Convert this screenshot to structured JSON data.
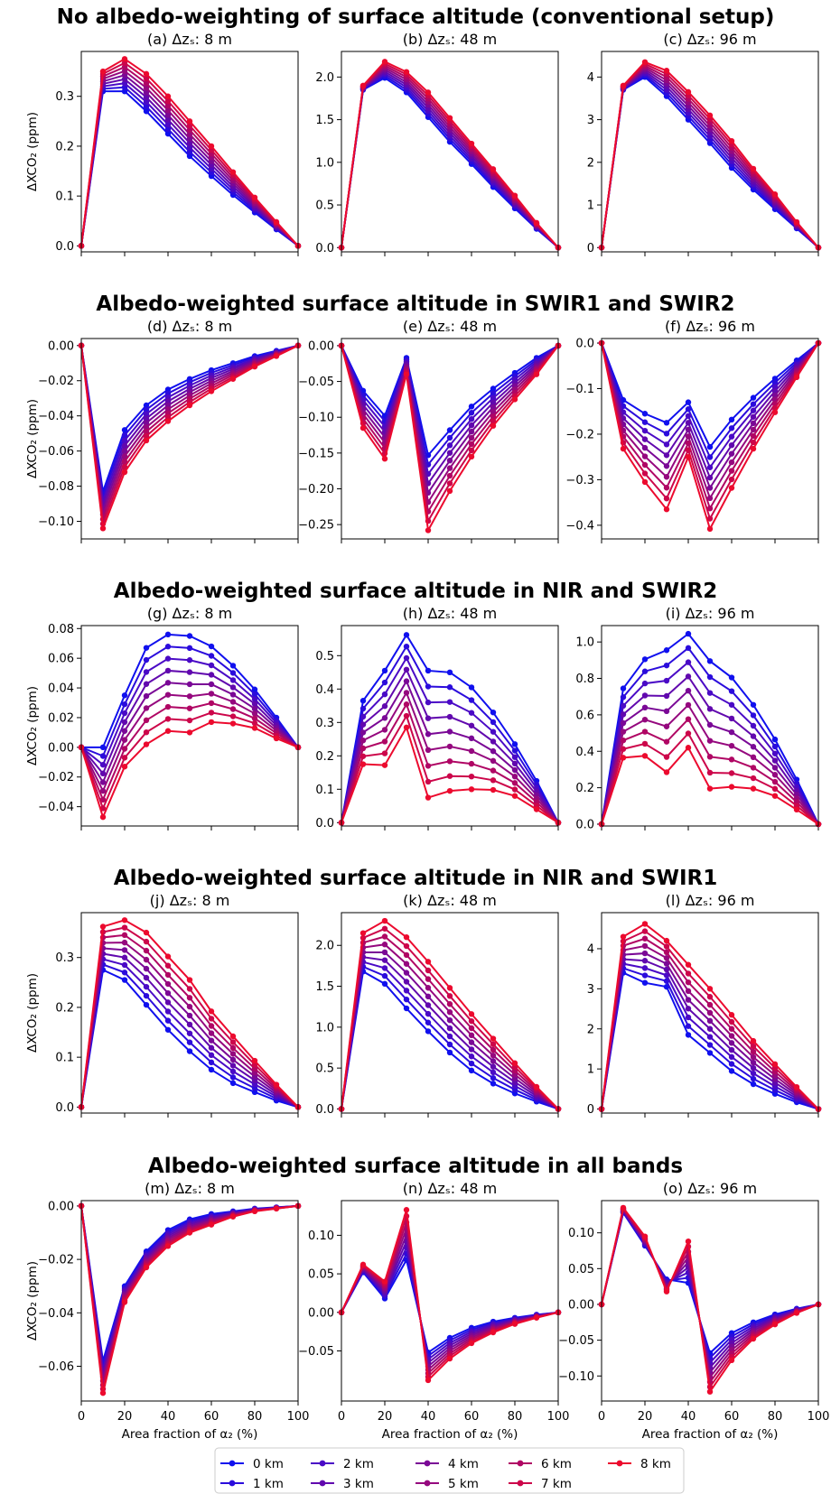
{
  "figure": {
    "x_label": "Area fraction of α₂ (%)",
    "y_label": "ΔXCO₂ (ppm)"
  },
  "legend": {
    "entries": [
      "0 km",
      "1 km",
      "2 km",
      "3 km",
      "4 km",
      "5 km",
      "6 km",
      "7 km",
      "8 km"
    ]
  },
  "series_colors": [
    "#1010ee",
    "#2b0cdc",
    "#4a0ac6",
    "#6108ae",
    "#7a0896",
    "#95087e",
    "#b00664",
    "#cc064a",
    "#ec0a2e"
  ],
  "chart_data": {
    "type": "line",
    "x": [
      0,
      10,
      20,
      30,
      40,
      50,
      60,
      70,
      80,
      90,
      100
    ],
    "x_ticks": [
      0,
      20,
      40,
      60,
      80,
      100
    ],
    "series_names": [
      "0 km",
      "1 km",
      "2 km",
      "3 km",
      "4 km",
      "5 km",
      "6 km",
      "7 km",
      "8 km"
    ],
    "rows": [
      {
        "title": "No albedo-weighting of surface altitude (conventional setup)",
        "panels": [
          {
            "label": "(a) Δzₛ: 8 m",
            "ylim": [
              -0.012,
              0.39
            ],
            "yticks": [
              "0.0",
              "0.1",
              "0.2",
              "0.3"
            ],
            "ytick_values": [
              0,
              0.1,
              0.2,
              0.3
            ],
            "start": [
              0,
              0.31,
              0.31,
              0.27,
              0.225,
              0.18,
              0.14,
              0.102,
              0.067,
              0.033,
              0
            ],
            "end": [
              0,
              0.35,
              0.375,
              0.345,
              0.3,
              0.25,
              0.2,
              0.148,
              0.097,
              0.048,
              0
            ]
          },
          {
            "label": "(b) Δzₛ: 48 m",
            "ylim": [
              -0.05,
              2.3
            ],
            "yticks": [
              "0.0",
              "0.5",
              "1.0",
              "1.5",
              "2.0"
            ],
            "ytick_values": [
              0,
              0.5,
              1,
              1.5,
              2
            ],
            "start": [
              0,
              1.85,
              1.99,
              1.82,
              1.53,
              1.24,
              0.98,
              0.71,
              0.46,
              0.22,
              0
            ],
            "end": [
              0,
              1.9,
              2.18,
              2.06,
              1.82,
              1.52,
              1.22,
              0.92,
              0.61,
              0.29,
              0
            ]
          },
          {
            "label": "(c) Δzₛ: 96 m",
            "ylim": [
              -0.1,
              4.6
            ],
            "yticks": [
              "0",
              "1",
              "2",
              "3",
              "4"
            ],
            "ytick_values": [
              0,
              1,
              2,
              3,
              4
            ],
            "start": [
              0,
              3.7,
              4.0,
              3.55,
              3.0,
              2.45,
              1.87,
              1.36,
              0.9,
              0.45,
              0
            ],
            "end": [
              0,
              3.8,
              4.35,
              4.15,
              3.65,
              3.1,
              2.5,
              1.85,
              1.25,
              0.6,
              0
            ]
          }
        ]
      },
      {
        "title": "Albedo-weighted surface altitude in SWIR1 and SWIR2",
        "panels": [
          {
            "label": "(d) Δzₛ: 8 m",
            "ylim": [
              -0.11,
              0.004
            ],
            "yticks": [
              "0.00",
              "−0.02",
              "−0.04",
              "−0.06",
              "−0.08",
              "−0.10"
            ],
            "ytick_values": [
              0,
              -0.02,
              -0.04,
              -0.06,
              -0.08,
              -0.1
            ],
            "start": [
              0,
              -0.083,
              -0.048,
              -0.034,
              -0.025,
              -0.019,
              -0.014,
              -0.01,
              -0.006,
              -0.003,
              0
            ],
            "end": [
              0,
              -0.104,
              -0.072,
              -0.054,
              -0.043,
              -0.034,
              -0.026,
              -0.019,
              -0.012,
              -0.006,
              0
            ]
          },
          {
            "label": "(e) Δzₛ: 48 m",
            "ylim": [
              -0.27,
              0.01
            ],
            "yticks": [
              "0.00",
              "−0.05",
              "−0.10",
              "−0.15",
              "−0.20",
              "−0.25"
            ],
            "ytick_values": [
              0,
              -0.05,
              -0.1,
              -0.15,
              -0.2,
              -0.25
            ],
            "start": [
              0,
              -0.063,
              -0.098,
              -0.017,
              -0.153,
              -0.118,
              -0.085,
              -0.06,
              -0.038,
              -0.017,
              0
            ],
            "end": [
              0,
              -0.115,
              -0.158,
              -0.04,
              -0.258,
              -0.203,
              -0.155,
              -0.112,
              -0.075,
              -0.04,
              0
            ]
          },
          {
            "label": "(f) Δzₛ: 96 m",
            "ylim": [
              -0.43,
              0.01
            ],
            "yticks": [
              "0.0",
              "−0.1",
              "−0.2",
              "−0.3",
              "−0.4"
            ],
            "ytick_values": [
              0,
              -0.1,
              -0.2,
              -0.3,
              -0.4
            ],
            "start": [
              0,
              -0.125,
              -0.155,
              -0.175,
              -0.13,
              -0.228,
              -0.168,
              -0.12,
              -0.078,
              -0.038,
              0
            ],
            "end": [
              0,
              -0.232,
              -0.305,
              -0.365,
              -0.25,
              -0.408,
              -0.318,
              -0.232,
              -0.152,
              -0.075,
              0
            ]
          }
        ]
      },
      {
        "title": "Albedo-weighted surface altitude in NIR and SWIR2",
        "panels": [
          {
            "label": "(g) Δzₛ: 8 m",
            "ylim": [
              -0.053,
              0.082
            ],
            "yticks": [
              "0.08",
              "0.06",
              "0.04",
              "0.02",
              "0.00",
              "−0.02",
              "−0.04"
            ],
            "ytick_values": [
              0.08,
              0.06,
              0.04,
              0.02,
              0,
              -0.02,
              -0.04
            ],
            "start": [
              0,
              0.0,
              0.035,
              0.067,
              0.076,
              0.075,
              0.068,
              0.055,
              0.039,
              0.02,
              0
            ],
            "end": [
              0,
              -0.047,
              -0.013,
              0.002,
              0.011,
              0.01,
              0.017,
              0.016,
              0.013,
              0.006,
              0
            ]
          },
          {
            "label": "(h) Δzₛ: 48 m",
            "ylim": [
              -0.01,
              0.59
            ],
            "yticks": [
              "0.0",
              "0.1",
              "0.2",
              "0.3",
              "0.4",
              "0.5"
            ],
            "ytick_values": [
              0,
              0.1,
              0.2,
              0.3,
              0.4,
              0.5
            ],
            "start": [
              0,
              0.365,
              0.455,
              0.562,
              0.455,
              0.45,
              0.405,
              0.33,
              0.235,
              0.125,
              0
            ],
            "end": [
              0,
              0.175,
              0.172,
              0.285,
              0.075,
              0.095,
              0.1,
              0.098,
              0.08,
              0.04,
              0
            ]
          },
          {
            "label": "(i) Δzₛ: 96 m",
            "ylim": [
              -0.01,
              1.09
            ],
            "yticks": [
              "0.0",
              "0.2",
              "0.4",
              "0.6",
              "0.8",
              "1.0"
            ],
            "ytick_values": [
              0,
              0.2,
              0.4,
              0.6,
              0.8,
              1.0
            ],
            "start": [
              0,
              0.745,
              0.905,
              0.955,
              1.045,
              0.895,
              0.805,
              0.655,
              0.465,
              0.245,
              0
            ],
            "end": [
              0,
              0.365,
              0.375,
              0.285,
              0.42,
              0.195,
              0.205,
              0.195,
              0.155,
              0.08,
              0
            ]
          }
        ]
      },
      {
        "title": "Albedo-weighted surface altitude in NIR and SWIR1",
        "panels": [
          {
            "label": "(j) Δzₛ: 8 m",
            "ylim": [
              -0.012,
              0.39
            ],
            "yticks": [
              "0.0",
              "0.1",
              "0.2",
              "0.3"
            ],
            "ytick_values": [
              0,
              0.1,
              0.2,
              0.3
            ],
            "start": [
              0,
              0.275,
              0.255,
              0.205,
              0.155,
              0.112,
              0.075,
              0.048,
              0.03,
              0.013,
              0
            ],
            "end": [
              0,
              0.362,
              0.375,
              0.35,
              0.302,
              0.255,
              0.192,
              0.142,
              0.093,
              0.045,
              0
            ]
          },
          {
            "label": "(k) Δzₛ: 48 m",
            "ylim": [
              -0.05,
              2.4
            ],
            "yticks": [
              "0.0",
              "0.5",
              "1.0",
              "1.5",
              "2.0"
            ],
            "ytick_values": [
              0,
              0.5,
              1,
              1.5,
              2
            ],
            "start": [
              0,
              1.68,
              1.53,
              1.23,
              0.95,
              0.69,
              0.47,
              0.31,
              0.19,
              0.09,
              0
            ],
            "end": [
              0,
              2.15,
              2.3,
              2.1,
              1.8,
              1.48,
              1.16,
              0.86,
              0.56,
              0.27,
              0
            ]
          },
          {
            "label": "(l) Δzₛ: 96 m",
            "ylim": [
              -0.1,
              4.9
            ],
            "yticks": [
              "0",
              "1",
              "2",
              "3",
              "4"
            ],
            "ytick_values": [
              0,
              1,
              2,
              3,
              4
            ],
            "start": [
              0,
              3.4,
              3.15,
              3.05,
              1.85,
              1.4,
              0.95,
              0.62,
              0.38,
              0.17,
              0
            ],
            "end": [
              0,
              4.3,
              4.62,
              4.2,
              3.6,
              3.0,
              2.35,
              1.7,
              1.12,
              0.55,
              0
            ]
          }
        ]
      },
      {
        "title": "Albedo-weighted surface altitude in all bands",
        "panels": [
          {
            "label": "(m) Δzₛ: 8 m",
            "ylim": [
              -0.073,
              0.002
            ],
            "yticks": [
              "0.00",
              "−0.02",
              "−0.04",
              "−0.06"
            ],
            "ytick_values": [
              0,
              -0.02,
              -0.04,
              -0.06
            ],
            "start": [
              0,
              -0.058,
              -0.03,
              -0.017,
              -0.009,
              -0.005,
              -0.003,
              -0.002,
              -0.001,
              -0.0005,
              0
            ],
            "end": [
              0,
              -0.07,
              -0.036,
              -0.023,
              -0.015,
              -0.01,
              -0.007,
              -0.004,
              -0.002,
              -0.001,
              0
            ]
          },
          {
            "label": "(n) Δzₛ: 48 m",
            "ylim": [
              -0.115,
              0.145
            ],
            "yticks": [
              "0.10",
              "0.05",
              "0.00",
              "−0.05"
            ],
            "ytick_values": [
              0.1,
              0.05,
              0,
              -0.05
            ],
            "start": [
              0,
              0.052,
              0.018,
              0.068,
              -0.052,
              -0.033,
              -0.02,
              -0.012,
              -0.007,
              -0.003,
              0
            ],
            "end": [
              0,
              0.062,
              0.04,
              0.133,
              -0.088,
              -0.06,
              -0.04,
              -0.026,
              -0.015,
              -0.007,
              0
            ]
          },
          {
            "label": "(o) Δzₛ: 96 m",
            "ylim": [
              -0.135,
              0.145
            ],
            "yticks": [
              "0.10",
              "0.05",
              "0.00",
              "−0.05",
              "−0.10"
            ],
            "ytick_values": [
              0.1,
              0.05,
              0,
              -0.05,
              -0.1
            ],
            "start": [
              0,
              0.128,
              0.082,
              0.035,
              0.03,
              -0.068,
              -0.04,
              -0.025,
              -0.014,
              -0.006,
              0
            ],
            "end": [
              0,
              0.135,
              0.095,
              0.018,
              0.088,
              -0.122,
              -0.078,
              -0.048,
              -0.028,
              -0.012,
              0
            ]
          }
        ]
      }
    ]
  }
}
